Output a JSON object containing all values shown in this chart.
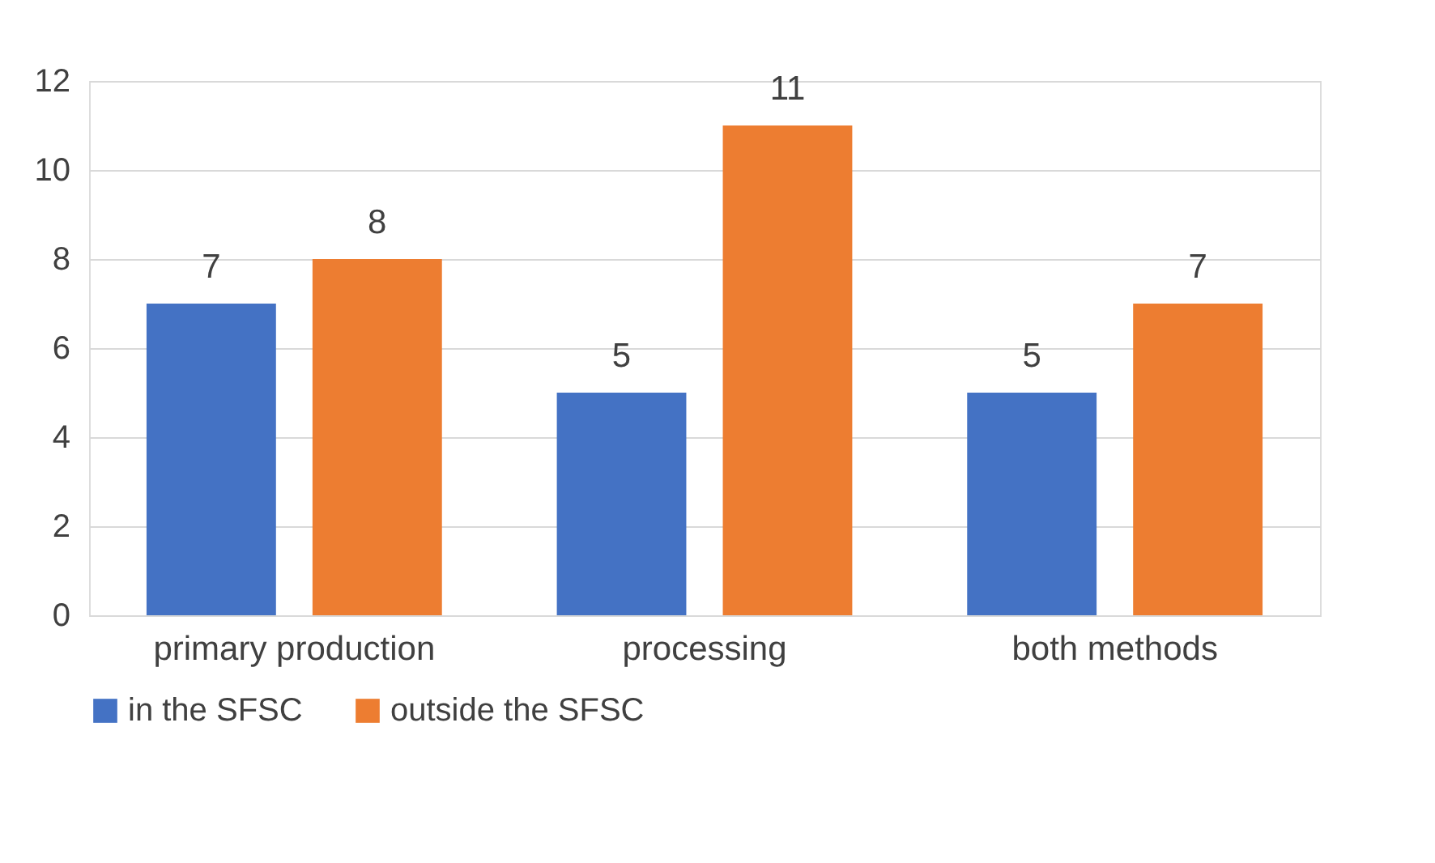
{
  "chart_data": {
    "type": "bar",
    "categories": [
      "primary production",
      "processing",
      "both methods"
    ],
    "series": [
      {
        "name": "in the SFSC",
        "color": "#4472c4",
        "values": [
          7,
          5,
          5
        ]
      },
      {
        "name": "outside the SFSC",
        "color": "#ed7d31",
        "values": [
          8,
          11,
          7
        ]
      }
    ],
    "ylim": [
      0,
      12
    ],
    "yticks": [
      0,
      2,
      4,
      6,
      8,
      10,
      12
    ],
    "grid": "y",
    "legend": "bottom",
    "data_labels": true
  }
}
